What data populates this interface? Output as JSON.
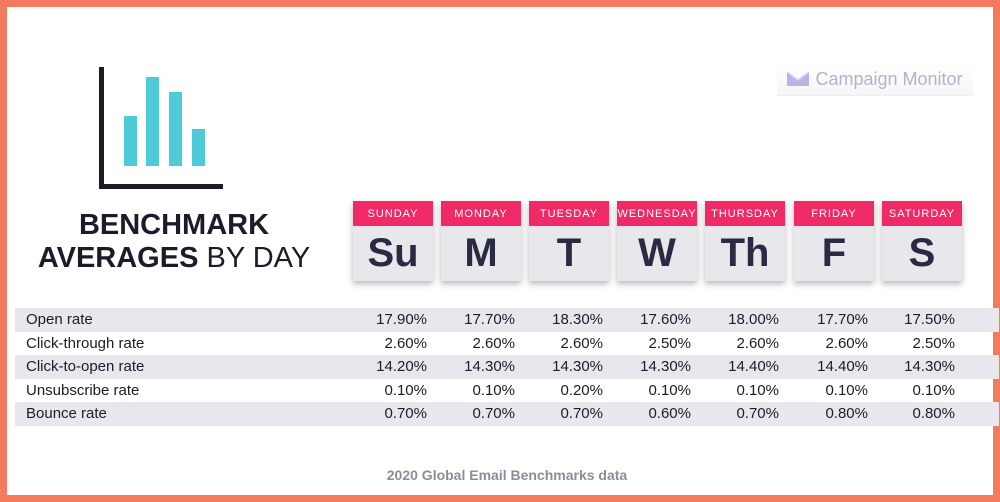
{
  "heading": {
    "bold": "BENCHMARK",
    "bold2": "AVERAGES",
    "light": "BY DAY"
  },
  "brand": {
    "name": "Campaign Monitor",
    "icon": "campaign-monitor-logo-icon",
    "color": "#b2b3c8"
  },
  "chart_icon": {
    "icon": "bar-chart-icon",
    "axis_color": "#1b1b2a",
    "bar_color": "#4ecbd7"
  },
  "days": [
    {
      "name": "SUNDAY",
      "abbr": "Su"
    },
    {
      "name": "MONDAY",
      "abbr": "M"
    },
    {
      "name": "TUESDAY",
      "abbr": "T"
    },
    {
      "name": "WEDNESDAY",
      "abbr": "W"
    },
    {
      "name": "THURSDAY",
      "abbr": "Th"
    },
    {
      "name": "FRIDAY",
      "abbr": "F"
    },
    {
      "name": "SATURDAY",
      "abbr": "S"
    }
  ],
  "colors": {
    "frame": "#f47a5e",
    "day_header": "#ef2a67",
    "day_tile": "#e8e8ec",
    "text": "#1b1b2a"
  },
  "chart_data": {
    "type": "table",
    "columns": [
      "Sunday",
      "Monday",
      "Tuesday",
      "Wednesday",
      "Thursday",
      "Friday",
      "Saturday"
    ],
    "rows": [
      {
        "label": "Open rate",
        "values": [
          "17.90%",
          "17.70%",
          "18.30%",
          "17.60%",
          "18.00%",
          "17.70%",
          "17.50%"
        ]
      },
      {
        "label": "Click-through rate",
        "values": [
          "2.60%",
          "2.60%",
          "2.60%",
          "2.50%",
          "2.60%",
          "2.60%",
          "2.50%"
        ]
      },
      {
        "label": "Click-to-open rate",
        "values": [
          "14.20%",
          "14.30%",
          "14.30%",
          "14.30%",
          "14.40%",
          "14.40%",
          "14.30%"
        ]
      },
      {
        "label": "Unsubscribe rate",
        "values": [
          "0.10%",
          "0.10%",
          "0.20%",
          "0.10%",
          "0.10%",
          "0.10%",
          "0.10%"
        ]
      },
      {
        "label": "Bounce rate",
        "values": [
          "0.70%",
          "0.70%",
          "0.70%",
          "0.60%",
          "0.70%",
          "0.80%",
          "0.80%"
        ]
      }
    ]
  },
  "source": "2020 Global Email Benchmarks data"
}
